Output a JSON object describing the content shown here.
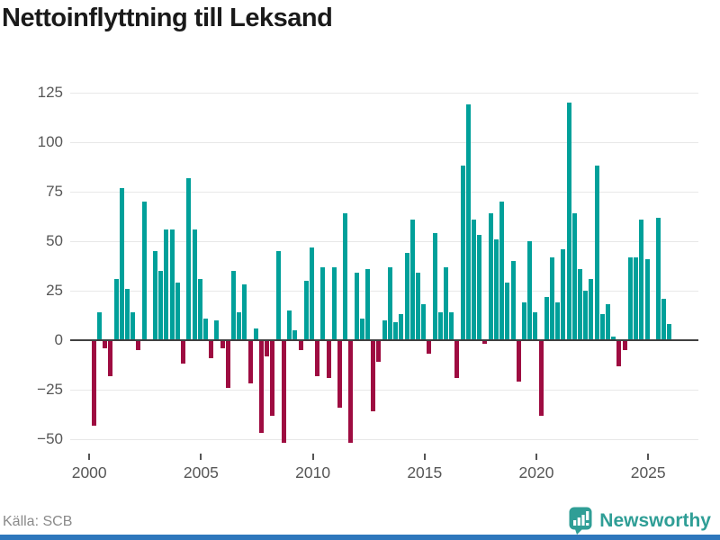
{
  "title": "Nettoinflyttning till Leksand",
  "source": "Källa: SCB",
  "branding": {
    "name": "Newsworthy",
    "icon": "bar-chart-bubble-icon"
  },
  "colors": {
    "positive_bar": "#00a09a",
    "negative_bar": "#9e0c41",
    "zero_line": "#404040",
    "gridline": "#e8e8e8",
    "axis_text": "#575757",
    "title_text": "#1a1a1a",
    "source_text": "#8a8a8a",
    "brand_teal": "#2f9e96",
    "bottom_bar_blue": "#2e77bc"
  },
  "chart_data": {
    "type": "bar",
    "title": "Nettoinflyttning till Leksand",
    "frequency": "quarterly",
    "x_start": "2000 Q1",
    "x_end": "2025 Q4",
    "values": [
      -43,
      14,
      -4,
      -18,
      31,
      77,
      26,
      14,
      -5,
      70,
      0,
      45,
      35,
      56,
      56,
      29,
      -12,
      82,
      56,
      31,
      11,
      -9,
      10,
      -4,
      -24,
      35,
      14,
      28,
      -22,
      6,
      -47,
      -8,
      -38,
      45,
      -52,
      15,
      5,
      -5,
      30,
      47,
      -18,
      37,
      -19,
      37,
      -34,
      64,
      -52,
      34,
      11,
      36,
      -36,
      -11,
      10,
      37,
      9,
      13,
      44,
      61,
      34,
      18,
      -7,
      54,
      14,
      37,
      14,
      -19,
      88,
      119,
      61,
      53,
      -2,
      64,
      51,
      70,
      29,
      40,
      -21,
      19,
      50,
      14,
      -38,
      22,
      42,
      19,
      46,
      120,
      64,
      36,
      25,
      31,
      88,
      13,
      18,
      2,
      -13,
      -5,
      42,
      42,
      61,
      41,
      0,
      62,
      21,
      8
    ],
    "xticks": [
      "2000",
      "2005",
      "2010",
      "2015",
      "2020",
      "2025"
    ],
    "yticks": [
      125,
      100,
      75,
      50,
      25,
      0,
      -25,
      -50
    ],
    "ytick_labels": [
      "125",
      "100",
      "75",
      "50",
      "25",
      "0",
      "−25",
      "−50"
    ],
    "ylim": [
      -62,
      135
    ],
    "grid": true,
    "legend": "none",
    "positive_color": "#00a09a",
    "negative_color": "#9e0c41"
  }
}
